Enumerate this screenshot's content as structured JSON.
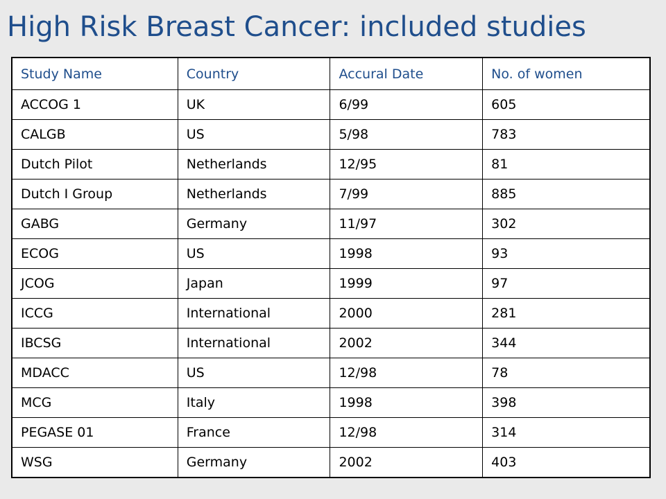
{
  "title": "High Risk Breast Cancer: included studies",
  "table": {
    "headers": [
      "Study Name",
      "Country",
      "Accural Date",
      "No. of women"
    ],
    "rows": [
      [
        "ACCOG 1",
        "UK",
        "6/99",
        "605"
      ],
      [
        "CALGB",
        "US",
        "5/98",
        "783"
      ],
      [
        "Dutch Pilot",
        "Netherlands",
        "12/95",
        "81"
      ],
      [
        "Dutch I Group",
        "Netherlands",
        "7/99",
        "885"
      ],
      [
        "GABG",
        "Germany",
        "11/97",
        "302"
      ],
      [
        "ECOG",
        "US",
        "1998",
        "93"
      ],
      [
        "JCOG",
        "Japan",
        "1999",
        "97"
      ],
      [
        "ICCG",
        "International",
        "2000",
        "281"
      ],
      [
        "IBCSG",
        "International",
        "2002",
        "344"
      ],
      [
        "MDACC",
        "US",
        "12/98",
        "78"
      ],
      [
        "MCG",
        "Italy",
        "1998",
        "398"
      ],
      [
        "PEGASE 01",
        "France",
        "12/98",
        "314"
      ],
      [
        "WSG",
        "Germany",
        "2002",
        "403"
      ]
    ]
  }
}
